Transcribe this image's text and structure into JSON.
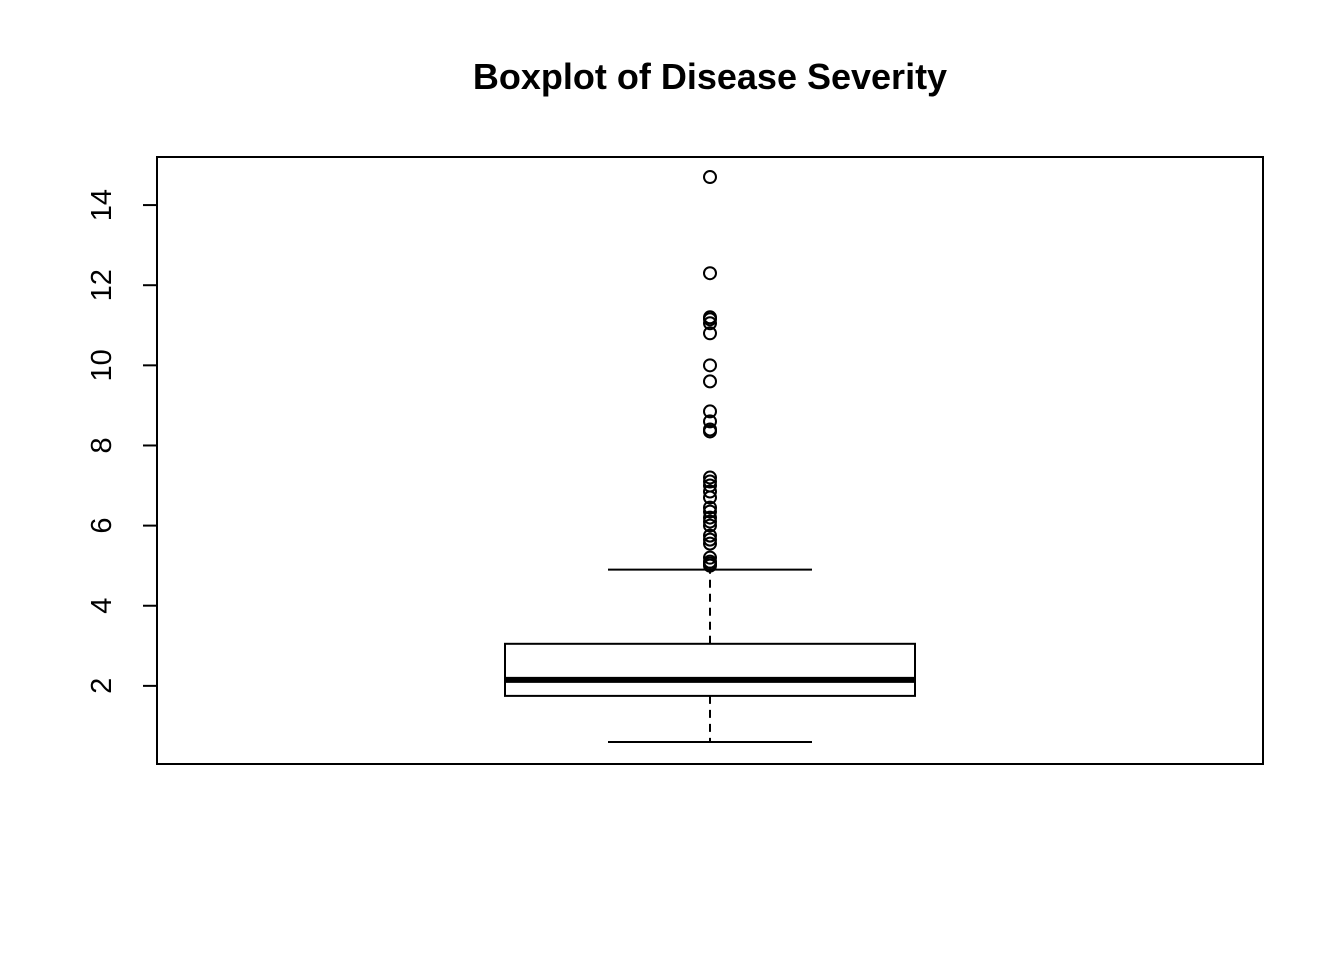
{
  "chart_data": {
    "type": "boxplot",
    "title": "Boxplot of Disease Severity",
    "xlabel": "",
    "ylabel": "",
    "ylim": [
      0.05,
      15.2
    ],
    "yticks": [
      2,
      4,
      6,
      8,
      10,
      12,
      14
    ],
    "grid": false,
    "box": {
      "min": 0.6,
      "q1": 1.75,
      "median": 2.15,
      "q3": 3.05,
      "whisker_high": 4.9
    },
    "outliers": [
      5.0,
      5.05,
      5.1,
      5.2,
      5.55,
      5.65,
      5.75,
      6.0,
      6.1,
      6.2,
      6.35,
      6.45,
      6.7,
      6.85,
      7.0,
      7.1,
      7.2,
      8.35,
      8.4,
      8.6,
      8.85,
      9.6,
      10.0,
      10.8,
      11.05,
      11.15,
      11.2,
      12.3,
      14.7
    ],
    "colors": {
      "stroke": "#000000",
      "background": "#ffffff"
    }
  }
}
